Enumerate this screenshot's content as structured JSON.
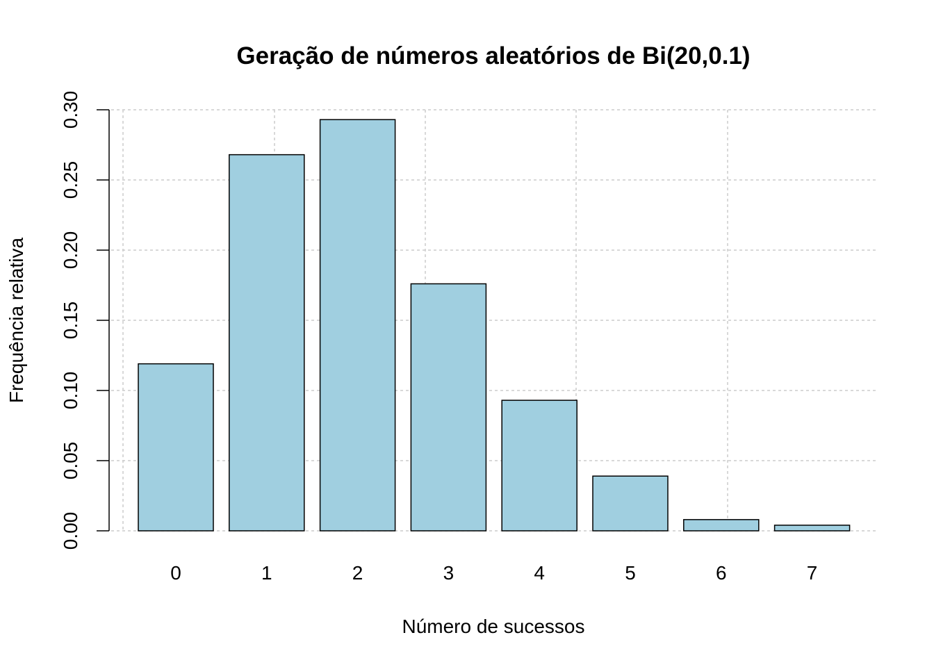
{
  "chart_data": {
    "type": "bar",
    "title": "Geração de números aleatórios de Bi(20,0.1)",
    "xlabel": "Número de sucessos",
    "ylabel": "Frequência relativa",
    "categories": [
      "0",
      "1",
      "2",
      "3",
      "4",
      "5",
      "6",
      "7"
    ],
    "values": [
      0.119,
      0.268,
      0.293,
      0.176,
      0.093,
      0.039,
      0.008,
      0.004
    ],
    "ylim": [
      0,
      0.3
    ],
    "yticks": [
      "0.00",
      "0.05",
      "0.10",
      "0.15",
      "0.20",
      "0.25",
      "0.30"
    ],
    "grid": true,
    "bar_color": "#a0cfe0",
    "grid_color": "#cccccc"
  }
}
